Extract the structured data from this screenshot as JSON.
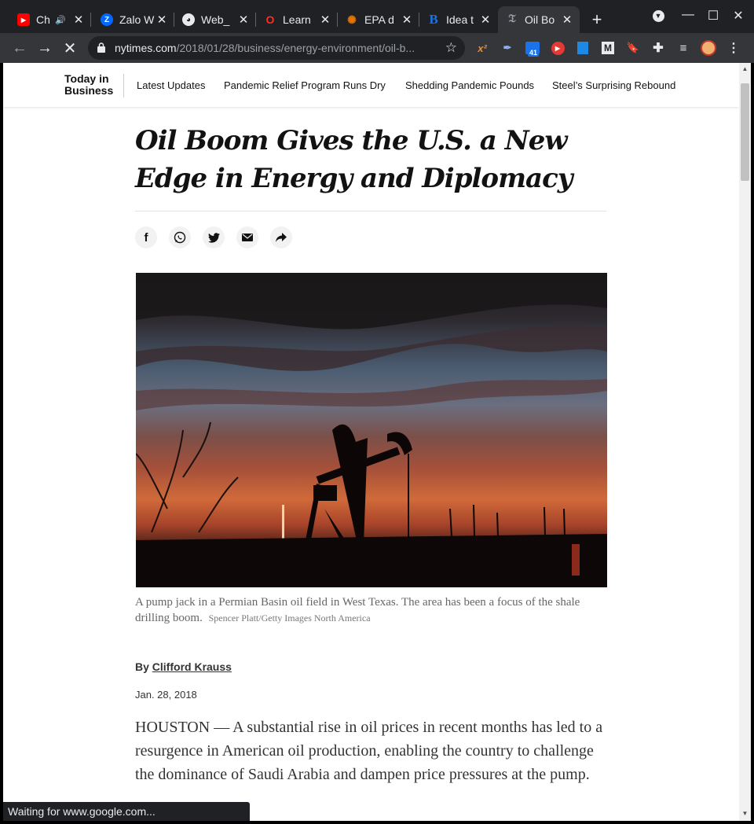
{
  "browser": {
    "tabs": [
      {
        "title": "Ch",
        "favicon": "youtube-icon",
        "color": "#ff0000",
        "glyph": "▶"
      },
      {
        "title": "Zalo W",
        "favicon": "zalo-icon",
        "color": "#0068ff",
        "glyph": "Z"
      },
      {
        "title": "Web_",
        "favicon": "github-icon",
        "color": "#e8eaed",
        "glyph": "●"
      },
      {
        "title": "Learn",
        "favicon": "learn-icon",
        "color": "#ff2d20",
        "glyph": "O"
      },
      {
        "title": "EPA d",
        "favicon": "epa-icon",
        "color": "#e37400",
        "glyph": "✺"
      },
      {
        "title": "Idea t",
        "favicon": "blogger-b-icon",
        "color": "#1a73e8",
        "glyph": "B"
      },
      {
        "title": "Oil Bo",
        "favicon": "nyt-icon",
        "color": "#9aa0a6",
        "glyph": "T"
      }
    ],
    "url_host": "nytimes.com",
    "url_path": "/2018/01/28/business/energy-environment/oil-b...",
    "extension_badge": "41",
    "status_text": "Waiting for www.google.com..."
  },
  "subnav": {
    "section_line1": "Today in",
    "section_line2": "Business",
    "links": [
      "Latest Updates",
      "Pandemic Relief Program Runs Dry",
      "Shedding Pandemic Pounds",
      "Steel’s Surprising Rebound"
    ]
  },
  "article": {
    "headline": "Oil Boom Gives the U.S. a New Edge in Energy and Diplomacy",
    "caption": "A pump jack in a Permian Basin oil field in West Texas. The area has been a focus of the shale drilling boom.",
    "credit": "Spencer Platt/Getty Images North America",
    "byline_prefix": "By ",
    "author": "Clifford Krauss",
    "date": "Jan. 28, 2018",
    "body": "HOUSTON — A substantial rise in oil prices in recent months has led to a resurgence in American oil production, enabling the country to challenge the dominance of Saudi Arabia and dampen price pressures at the pump."
  }
}
